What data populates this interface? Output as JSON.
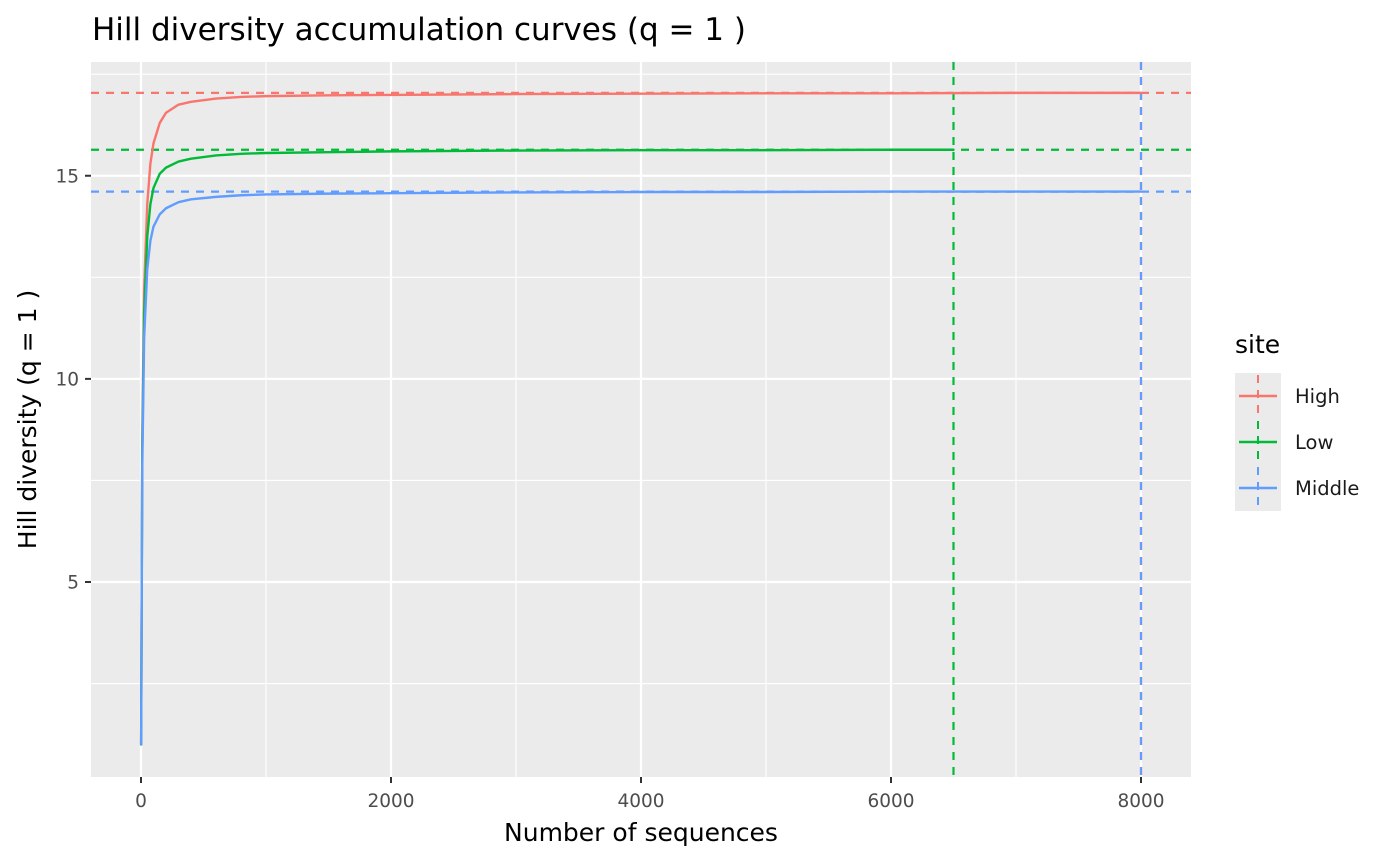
{
  "chart_data": {
    "type": "line",
    "title": "Hill diversity accumulation curves (q = 1 )",
    "xlabel": "Number of sequences",
    "ylabel": "Hill diversity (q = 1 )",
    "xlim": [
      -400,
      8400
    ],
    "ylim": [
      0.2,
      17.8
    ],
    "x_ticks": [
      0,
      2000,
      4000,
      6000,
      8000
    ],
    "x_tick_labels": [
      "0",
      "2000",
      "4000",
      "6000",
      "8000"
    ],
    "y_ticks": [
      5,
      10,
      15
    ],
    "y_tick_labels": [
      "5",
      "10",
      "15"
    ],
    "grid": true,
    "legend": {
      "title": "site",
      "position": "right"
    },
    "series": [
      {
        "name": "High",
        "color": "#F8766D",
        "x": [
          1,
          10,
          25,
          50,
          75,
          100,
          150,
          200,
          300,
          400,
          600,
          800,
          1000,
          1500,
          2000,
          3000,
          4000,
          5000,
          6000,
          7000,
          8000
        ],
        "values": [
          1.0,
          8.5,
          12.2,
          14.3,
          15.3,
          15.8,
          16.3,
          16.55,
          16.75,
          16.82,
          16.9,
          16.94,
          16.96,
          16.98,
          16.99,
          17.01,
          17.02,
          17.03,
          17.03,
          17.04,
          17.04
        ],
        "estimate_y": 17.04,
        "max_sequences": 8000
      },
      {
        "name": "Low",
        "color": "#00BA38",
        "x": [
          1,
          10,
          25,
          50,
          75,
          100,
          150,
          200,
          300,
          400,
          600,
          800,
          1000,
          1500,
          2000,
          3000,
          4000,
          5000,
          6000,
          6500
        ],
        "values": [
          1.0,
          8.2,
          11.6,
          13.5,
          14.3,
          14.7,
          15.05,
          15.2,
          15.35,
          15.42,
          15.5,
          15.54,
          15.56,
          15.58,
          15.6,
          15.62,
          15.63,
          15.63,
          15.64,
          15.64
        ],
        "estimate_y": 15.64,
        "max_sequences": 6500
      },
      {
        "name": "Middle",
        "color": "#619CFF",
        "x": [
          1,
          10,
          25,
          50,
          75,
          100,
          150,
          200,
          300,
          400,
          600,
          800,
          1000,
          1500,
          2000,
          3000,
          4000,
          5000,
          6000,
          7000,
          8000
        ],
        "values": [
          1.0,
          7.8,
          11.0,
          12.7,
          13.4,
          13.75,
          14.05,
          14.2,
          14.35,
          14.42,
          14.48,
          14.52,
          14.54,
          14.56,
          14.57,
          14.59,
          14.6,
          14.6,
          14.61,
          14.61,
          14.61
        ],
        "estimate_y": 14.61,
        "max_sequences": 8000
      }
    ]
  }
}
